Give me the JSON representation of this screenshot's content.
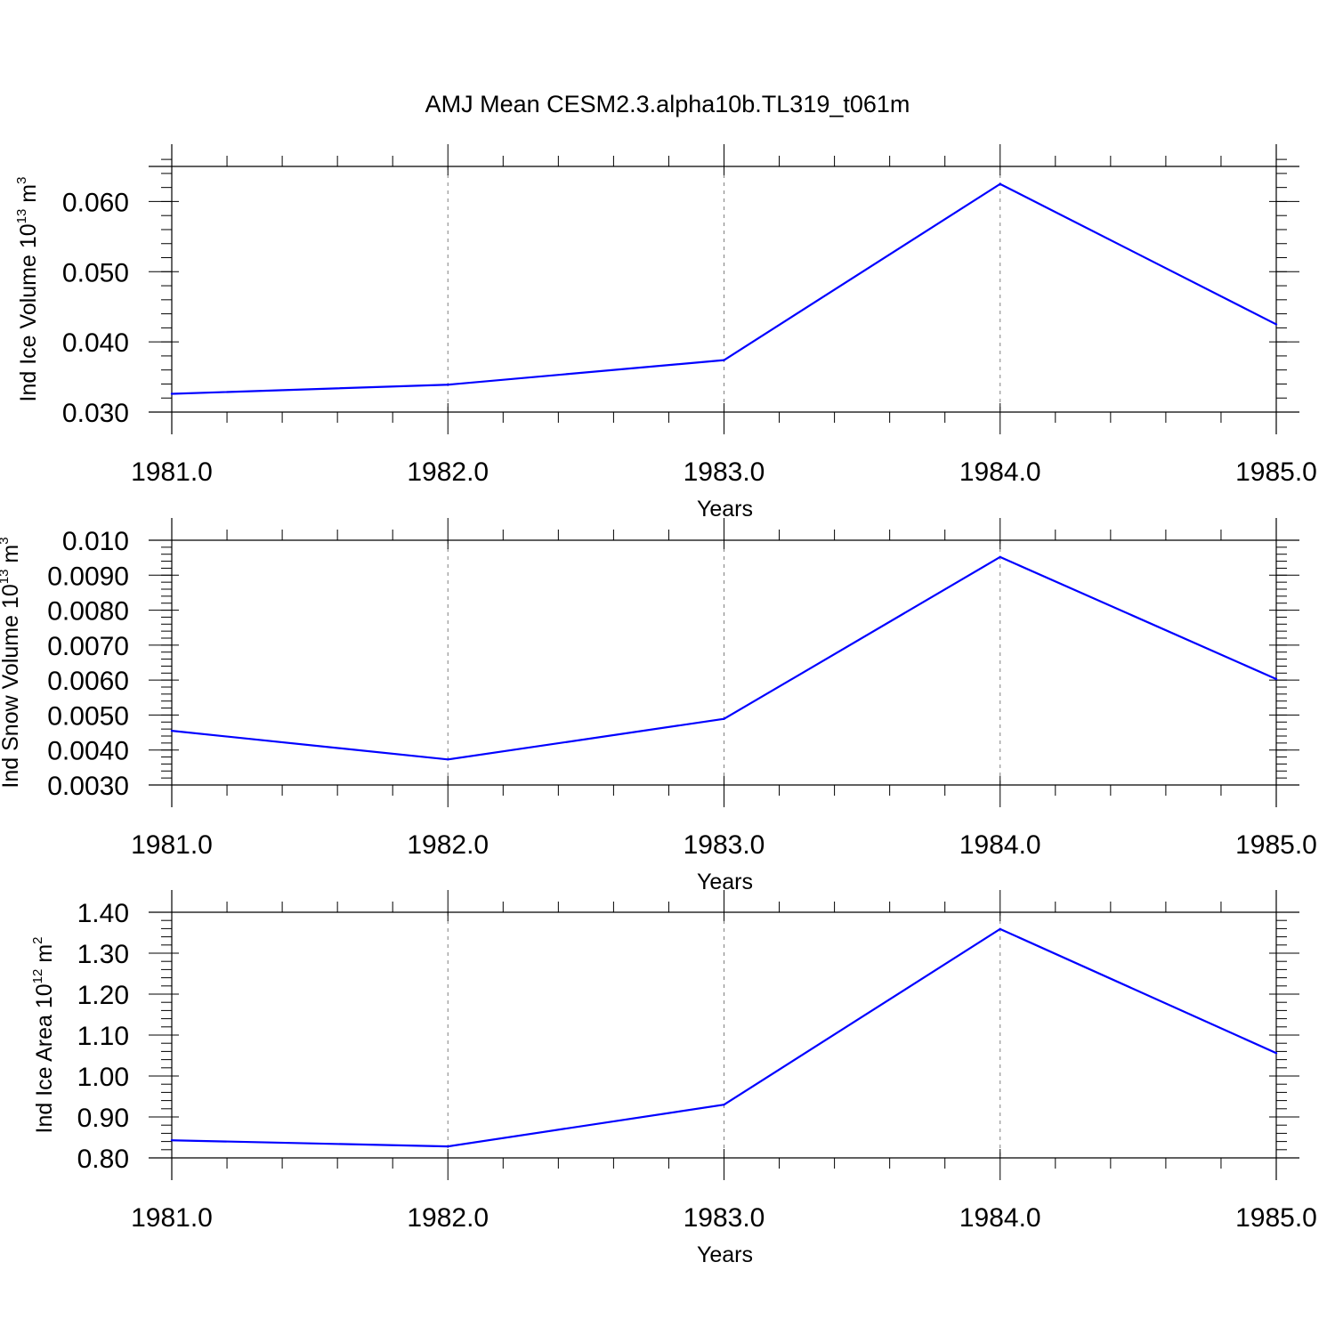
{
  "title": "AMJ Mean CESM2.3.alpha10b.TL319_t061m",
  "colors": {
    "series": "#0000ff",
    "axes": "#000000",
    "grid": "#808080"
  },
  "chart_data": [
    {
      "type": "line",
      "title": "AMJ Mean CESM2.3.alpha10b.TL319_t061m",
      "xlabel": "Years",
      "ylabel": {
        "text": "Ind Ice Volume 10",
        "sup": "13",
        "unit": " m",
        "unit_sup": "3"
      },
      "x": [
        1981,
        1982,
        1983,
        1984,
        1985
      ],
      "series": [
        {
          "values": [
            0.0326,
            0.0339,
            0.0374,
            0.0625,
            0.0425
          ]
        }
      ],
      "xlim": [
        1981,
        1985
      ],
      "ylim": [
        0.03,
        0.065
      ],
      "xticks": [
        1981,
        1982,
        1983,
        1984,
        1985
      ],
      "xtick_labels": [
        "1981.0",
        "1982.0",
        "1983.0",
        "1984.0",
        "1985.0"
      ],
      "yticks": [
        0.03,
        0.04,
        0.05,
        0.06
      ],
      "ytick_labels": [
        "0.030",
        "0.040",
        "0.050",
        "0.060"
      ],
      "yminor_step": 0.002,
      "grid": "vertical-dashed"
    },
    {
      "type": "line",
      "xlabel": "Years",
      "ylabel": {
        "text": "Ind Snow Volume 10",
        "sup": "13",
        "unit": " m",
        "unit_sup": "3"
      },
      "x": [
        1981,
        1982,
        1983,
        1984,
        1985
      ],
      "series": [
        {
          "values": [
            0.00455,
            0.00373,
            0.00489,
            0.00952,
            0.00603
          ]
        }
      ],
      "xlim": [
        1981,
        1985
      ],
      "ylim": [
        0.003,
        0.01
      ],
      "xticks": [
        1981,
        1982,
        1983,
        1984,
        1985
      ],
      "xtick_labels": [
        "1981.0",
        "1982.0",
        "1983.0",
        "1984.0",
        "1985.0"
      ],
      "yticks": [
        0.003,
        0.004,
        0.005,
        0.006,
        0.007,
        0.008,
        0.009,
        0.01
      ],
      "ytick_labels": [
        "0.0030",
        "0.0040",
        "0.0050",
        "0.0060",
        "0.0070",
        "0.0080",
        "0.0090",
        "0.010"
      ],
      "yminor_step": 0.0002,
      "grid": "vertical-dashed"
    },
    {
      "type": "line",
      "xlabel": "Years",
      "ylabel": {
        "text": "Ind Ice Area 10",
        "sup": "12",
        "unit": " m",
        "unit_sup": "2"
      },
      "x": [
        1981,
        1982,
        1983,
        1984,
        1985
      ],
      "series": [
        {
          "values": [
            0.843,
            0.828,
            0.93,
            1.359,
            1.056
          ]
        }
      ],
      "xlim": [
        1981,
        1985
      ],
      "ylim": [
        0.8,
        1.4
      ],
      "xticks": [
        1981,
        1982,
        1983,
        1984,
        1985
      ],
      "xtick_labels": [
        "1981.0",
        "1982.0",
        "1983.0",
        "1984.0",
        "1985.0"
      ],
      "yticks": [
        0.8,
        0.9,
        1.0,
        1.1,
        1.2,
        1.3,
        1.4
      ],
      "ytick_labels": [
        "0.80",
        "0.90",
        "1.00",
        "1.10",
        "1.20",
        "1.30",
        "1.40"
      ],
      "yminor_step": 0.02,
      "grid": "vertical-dashed"
    }
  ]
}
